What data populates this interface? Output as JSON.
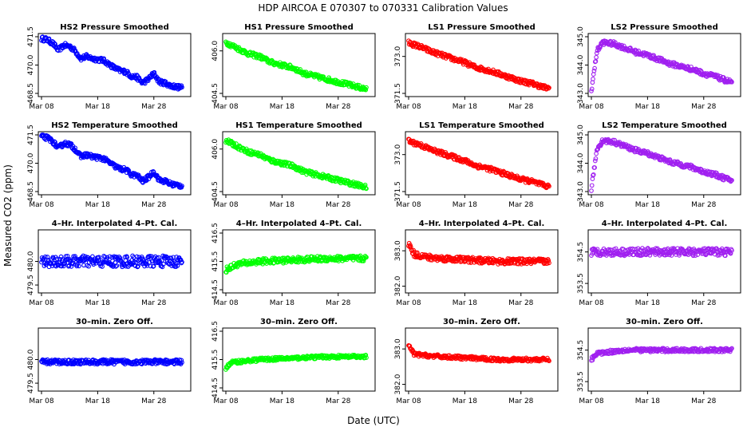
{
  "figure": {
    "title": "HDP   AIRCOA E   070307 to 070331   Calibration Values",
    "xlabel": "Date (UTC)",
    "ylabel": "Measured CO2 (ppm)"
  },
  "colors": {
    "HS2": "#0000ff",
    "HS1": "#00ff00",
    "LS1": "#ff0000",
    "LS2": "#a020f0"
  },
  "chart_data": [
    {
      "type": "scatter",
      "title": "HS2 Pressure Smoothed",
      "color_key": "HS2",
      "shape": "trend_hs2",
      "xlim": [
        8,
        34
      ],
      "ylim": [
        468.5,
        471.5
      ],
      "yticks": [
        "468.5",
        "470.0",
        "471.5"
      ],
      "xticks": [
        "Mar 08",
        "Mar 18",
        "Mar 28"
      ],
      "x": [
        8,
        9,
        10,
        11,
        12,
        13,
        14,
        15,
        16,
        17,
        18,
        19,
        20,
        21,
        22,
        23,
        24,
        25,
        26,
        27,
        28,
        29,
        30,
        31,
        32,
        33
      ],
      "y": [
        471.4,
        471.35,
        471.15,
        470.8,
        471.05,
        471.0,
        470.75,
        470.35,
        470.45,
        470.35,
        470.3,
        470.25,
        470.05,
        469.85,
        469.7,
        469.65,
        469.4,
        469.35,
        469.05,
        469.25,
        469.55,
        469.1,
        469.05,
        468.9,
        468.85,
        468.8
      ]
    },
    {
      "type": "scatter",
      "title": "HS1 Pressure Smoothed",
      "color_key": "HS1",
      "shape": "trend",
      "xlim": [
        8,
        34
      ],
      "ylim": [
        404.5,
        406.5
      ],
      "yticks": [
        "404.5",
        "406.0"
      ],
      "xticks": [
        "Mar 08",
        "Mar 18",
        "Mar 28"
      ],
      "x": [
        8,
        10,
        12,
        14,
        16,
        18,
        20,
        22,
        24,
        26,
        28,
        30,
        32,
        33
      ],
      "y": [
        406.3,
        406.1,
        405.9,
        405.8,
        405.6,
        405.5,
        405.4,
        405.2,
        405.1,
        405.0,
        404.9,
        404.8,
        404.7,
        404.65
      ]
    },
    {
      "type": "scatter",
      "title": "LS1 Pressure Smoothed",
      "color_key": "LS1",
      "shape": "trend",
      "xlim": [
        8,
        34
      ],
      "ylim": [
        371.5,
        373.8
      ],
      "yticks": [
        "371.5",
        "373.0"
      ],
      "xticks": [
        "Mar 08",
        "Mar 18",
        "Mar 28"
      ],
      "x": [
        8,
        10,
        12,
        14,
        16,
        18,
        20,
        22,
        24,
        26,
        28,
        30,
        32,
        33
      ],
      "y": [
        373.55,
        373.4,
        373.2,
        373.05,
        372.9,
        372.75,
        372.55,
        372.45,
        372.3,
        372.15,
        372.0,
        371.9,
        371.75,
        371.7
      ]
    },
    {
      "type": "scatter",
      "title": "LS2 Pressure Smoothed",
      "color_key": "LS2",
      "shape": "trend_ls2",
      "xlim": [
        8,
        34
      ],
      "ylim": [
        343.0,
        345.0
      ],
      "yticks": [
        "343.0",
        "344.0",
        "345.0"
      ],
      "xticks": [
        "Mar 08",
        "Mar 18",
        "Mar 28"
      ],
      "x": [
        8,
        9,
        10,
        12,
        14,
        16,
        18,
        20,
        22,
        24,
        26,
        28,
        30,
        32,
        33
      ],
      "y": [
        343.1,
        344.5,
        344.8,
        344.75,
        344.6,
        344.45,
        344.35,
        344.2,
        344.05,
        343.95,
        343.85,
        343.7,
        343.6,
        343.45,
        343.4
      ]
    },
    {
      "type": "scatter",
      "title": "HS2 Temperature Smoothed",
      "color_key": "HS2",
      "shape": "trend_hs2",
      "xlim": [
        8,
        34
      ],
      "ylim": [
        468.5,
        471.5
      ],
      "yticks": [
        "468.5",
        "470.0",
        "471.5"
      ],
      "xticks": [
        "Mar 08",
        "Mar 18",
        "Mar 28"
      ],
      "x": [
        8,
        9,
        10,
        11,
        12,
        13,
        14,
        15,
        16,
        17,
        18,
        19,
        20,
        21,
        22,
        23,
        24,
        25,
        26,
        27,
        28,
        29,
        30,
        31,
        32,
        33
      ],
      "y": [
        471.4,
        471.35,
        471.15,
        470.8,
        471.05,
        471.0,
        470.75,
        470.35,
        470.45,
        470.35,
        470.3,
        470.25,
        470.05,
        469.85,
        469.7,
        469.65,
        469.4,
        469.35,
        469.05,
        469.25,
        469.55,
        469.1,
        469.05,
        468.9,
        468.85,
        468.8
      ]
    },
    {
      "type": "scatter",
      "title": "HS1 Temperature Smoothed",
      "color_key": "HS1",
      "shape": "trend",
      "xlim": [
        8,
        34
      ],
      "ylim": [
        404.5,
        406.5
      ],
      "yticks": [
        "404.5",
        "406.0"
      ],
      "xticks": [
        "Mar 08",
        "Mar 18",
        "Mar 28"
      ],
      "x": [
        8,
        10,
        12,
        14,
        16,
        18,
        20,
        22,
        24,
        26,
        28,
        30,
        32,
        33
      ],
      "y": [
        406.3,
        406.1,
        405.9,
        405.8,
        405.6,
        405.5,
        405.4,
        405.2,
        405.1,
        405.0,
        404.9,
        404.8,
        404.7,
        404.65
      ]
    },
    {
      "type": "scatter",
      "title": "LS1 Temperature Smoothed",
      "color_key": "LS1",
      "shape": "trend",
      "xlim": [
        8,
        34
      ],
      "ylim": [
        371.5,
        373.8
      ],
      "yticks": [
        "371.5",
        "373.0"
      ],
      "xticks": [
        "Mar 08",
        "Mar 18",
        "Mar 28"
      ],
      "x": [
        8,
        10,
        12,
        14,
        16,
        18,
        20,
        22,
        24,
        26,
        28,
        30,
        32,
        33
      ],
      "y": [
        373.55,
        373.4,
        373.2,
        373.05,
        372.9,
        372.75,
        372.55,
        372.45,
        372.3,
        372.15,
        372.0,
        371.9,
        371.75,
        371.7
      ]
    },
    {
      "type": "scatter",
      "title": "LS2 Temperature Smoothed",
      "color_key": "LS2",
      "shape": "trend_ls2",
      "xlim": [
        8,
        34
      ],
      "ylim": [
        343.0,
        345.0
      ],
      "yticks": [
        "343.0",
        "344.0",
        "345.0"
      ],
      "xticks": [
        "Mar 08",
        "Mar 18",
        "Mar 28"
      ],
      "x": [
        8,
        9,
        10,
        12,
        14,
        16,
        18,
        20,
        22,
        24,
        26,
        28,
        30,
        32,
        33
      ],
      "y": [
        343.1,
        344.5,
        344.8,
        344.75,
        344.6,
        344.45,
        344.35,
        344.2,
        344.05,
        343.95,
        343.85,
        343.7,
        343.6,
        343.45,
        343.4
      ]
    },
    {
      "type": "scatter",
      "title": "4–Hr. Interpolated 4–Pt. Cal.",
      "color_key": "HS2",
      "shape": "flat",
      "xlim": [
        8,
        34
      ],
      "ylim": [
        479.4,
        480.6
      ],
      "yticks": [
        "479.5",
        "480.0"
      ],
      "xticks": [
        "Mar 08",
        "Mar 18",
        "Mar 28"
      ],
      "x": [
        8,
        33
      ],
      "y": [
        480.0,
        480.0
      ],
      "spread": 0.12
    },
    {
      "type": "scatter",
      "title": "4–Hr. Interpolated 4–Pt. Cal.",
      "color_key": "HS1",
      "shape": "flat",
      "xlim": [
        8,
        34
      ],
      "ylim": [
        414.5,
        416.5
      ],
      "yticks": [
        "414.5",
        "415.5",
        "416.5"
      ],
      "xticks": [
        "Mar 08",
        "Mar 18",
        "Mar 28"
      ],
      "x": [
        8,
        10,
        14,
        20,
        26,
        33
      ],
      "y": [
        415.2,
        415.4,
        415.5,
        415.55,
        415.6,
        415.6
      ],
      "spread": 0.1
    },
    {
      "type": "scatter",
      "title": "4–Hr. Interpolated 4–Pt. Cal.",
      "color_key": "LS1",
      "shape": "flat",
      "xlim": [
        8,
        34
      ],
      "ylim": [
        381.9,
        383.5
      ],
      "yticks": [
        "382.0",
        "383.0"
      ],
      "xticks": [
        "Mar 08",
        "Mar 18",
        "Mar 28"
      ],
      "x": [
        8,
        9,
        12,
        18,
        24,
        33
      ],
      "y": [
        383.2,
        382.9,
        382.8,
        382.75,
        382.7,
        382.7
      ],
      "spread": 0.08
    },
    {
      "type": "scatter",
      "title": "4–Hr. Interpolated 4–Pt. Cal.",
      "color_key": "LS2",
      "shape": "flat",
      "xlim": [
        8,
        34
      ],
      "ylim": [
        353.3,
        355.1
      ],
      "yticks": [
        "353.5",
        "354.5"
      ],
      "xticks": [
        "Mar 08",
        "Mar 18",
        "Mar 28"
      ],
      "x": [
        8,
        33
      ],
      "y": [
        354.5,
        354.5
      ],
      "spread": 0.12
    },
    {
      "type": "scatter",
      "title": "30–min. Zero Off.",
      "color_key": "HS2",
      "shape": "flat",
      "xlim": [
        8,
        34
      ],
      "ylim": [
        479.4,
        480.6
      ],
      "yticks": [
        "479.5",
        "480.0"
      ],
      "xticks": [
        "Mar 08",
        "Mar 18",
        "Mar 28"
      ],
      "x": [
        8,
        33
      ],
      "y": [
        479.95,
        479.95
      ],
      "spread": 0.05
    },
    {
      "type": "scatter",
      "title": "30–min. Zero Off.",
      "color_key": "HS1",
      "shape": "flat",
      "xlim": [
        8,
        34
      ],
      "ylim": [
        414.5,
        416.5
      ],
      "yticks": [
        "414.5",
        "415.5",
        "416.5"
      ],
      "xticks": [
        "Mar 08",
        "Mar 18",
        "Mar 28"
      ],
      "x": [
        8,
        9,
        14,
        20,
        26,
        33
      ],
      "y": [
        415.2,
        415.4,
        415.5,
        415.55,
        415.6,
        415.6
      ],
      "spread": 0.06
    },
    {
      "type": "scatter",
      "title": "30–min. Zero Off.",
      "color_key": "LS1",
      "shape": "flat",
      "xlim": [
        8,
        34
      ],
      "ylim": [
        381.9,
        383.5
      ],
      "yticks": [
        "382.0",
        "383.0"
      ],
      "xticks": [
        "Mar 08",
        "Mar 18",
        "Mar 28"
      ],
      "x": [
        8,
        9,
        12,
        18,
        24,
        33
      ],
      "y": [
        383.1,
        382.85,
        382.8,
        382.75,
        382.7,
        382.7
      ],
      "spread": 0.05
    },
    {
      "type": "scatter",
      "title": "30–min. Zero Off.",
      "color_key": "LS2",
      "shape": "flat",
      "xlim": [
        8,
        34
      ],
      "ylim": [
        353.3,
        355.1
      ],
      "yticks": [
        "353.5",
        "354.5"
      ],
      "xticks": [
        "Mar 08",
        "Mar 18",
        "Mar 28"
      ],
      "x": [
        8,
        9,
        14,
        22,
        33
      ],
      "y": [
        354.2,
        354.4,
        354.5,
        354.5,
        354.5
      ],
      "spread": 0.06
    }
  ]
}
